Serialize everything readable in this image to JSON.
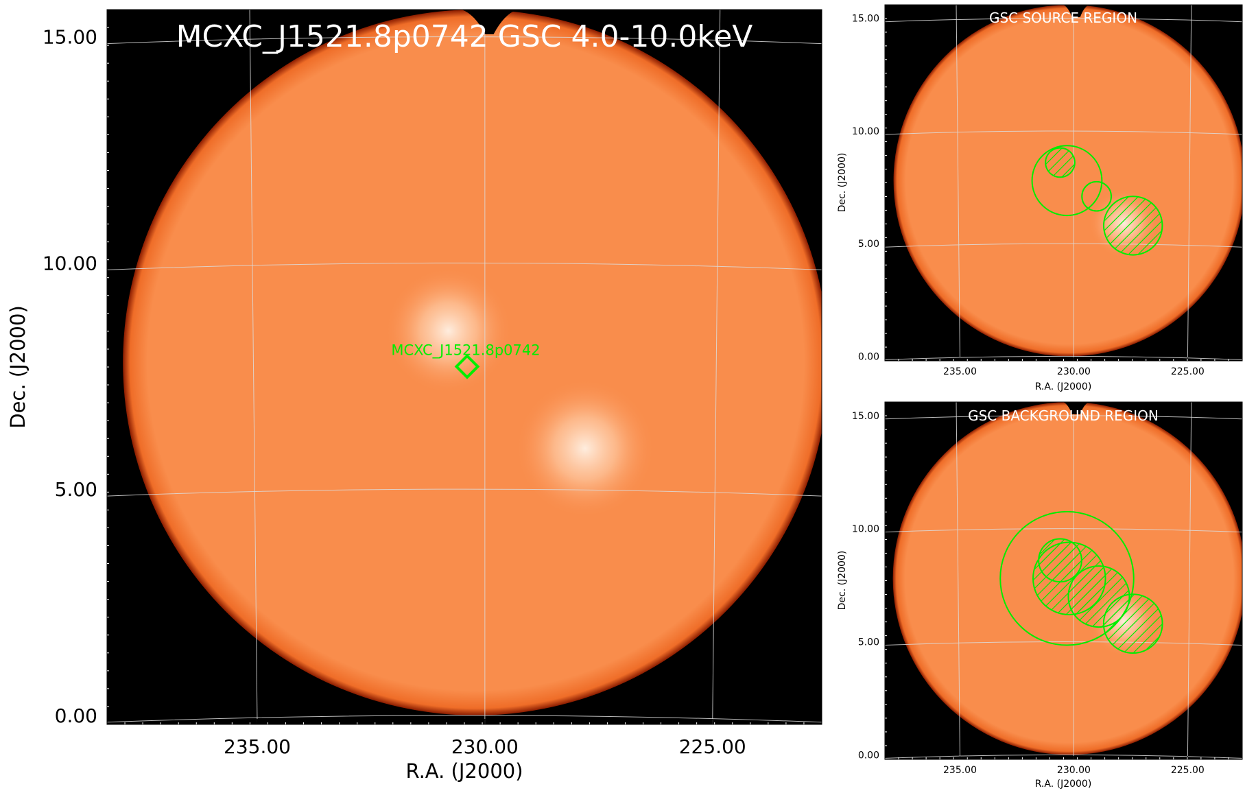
{
  "colors": {
    "disk": "#f98d4c",
    "disk_edge": "#e9651f",
    "background": "#000000",
    "grid": "#dcdcdc",
    "region": "#00ee00",
    "title_text": "#ffffff",
    "bright_spot": "#fff2e6"
  },
  "chart_data": [
    {
      "id": "main",
      "type": "heatmap",
      "title": "MCXC_J1521.8p0742 GSC 4.0-10.0keV",
      "xlabel": "R.A. (J2000)",
      "ylabel": "Dec. (J2000)",
      "xlim": [
        238.3,
        222.6
      ],
      "ylim": [
        -0.2,
        15.6
      ],
      "x_ticks": [
        235.0,
        230.0,
        225.0
      ],
      "x_tick_labels": [
        "235.00",
        "230.00",
        "225.00"
      ],
      "y_ticks": [
        0.0,
        5.0,
        10.0,
        15.0
      ],
      "y_tick_labels": [
        "0.00",
        "5.00",
        "10.00",
        "15.00"
      ],
      "grid": true,
      "field_of_view": {
        "ra": 230.2,
        "dec": 7.8,
        "radius_deg": 7.8
      },
      "bright_spots": [
        {
          "ra": 227.8,
          "dec": 5.9,
          "radius_deg": 1.1
        },
        {
          "ra": 230.8,
          "dec": 8.5,
          "radius_deg": 1.0
        }
      ],
      "marker": {
        "label": "MCXC_J1521.8p0742",
        "ra": 230.39,
        "dec": 7.71,
        "shape": "diamond"
      }
    },
    {
      "id": "source",
      "type": "heatmap",
      "title": "GSC SOURCE REGION",
      "xlabel": "R.A. (J2000)",
      "ylabel": "Dec. (J2000)",
      "xlim": [
        238.3,
        222.6
      ],
      "ylim": [
        -0.2,
        15.6
      ],
      "x_ticks": [
        235.0,
        230.0,
        225.0
      ],
      "x_tick_labels": [
        "235.00",
        "230.00",
        "225.00"
      ],
      "y_ticks": [
        0.0,
        5.0,
        10.0,
        15.0
      ],
      "y_tick_labels": [
        "0.00",
        "5.00",
        "10.00",
        "15.00"
      ],
      "grid": true,
      "field_of_view": {
        "ra": 230.2,
        "dec": 7.8,
        "radius_deg": 7.8
      },
      "bright_spots": [
        {
          "ra": 227.8,
          "dec": 5.9,
          "radius_deg": 1.1
        }
      ],
      "regions": [
        {
          "ra": 230.3,
          "dec": 7.8,
          "radius_deg": 1.55,
          "hatched": false
        },
        {
          "ra": 230.6,
          "dec": 8.6,
          "radius_deg": 0.65,
          "hatched": true
        },
        {
          "ra": 229.0,
          "dec": 7.1,
          "radius_deg": 0.65,
          "hatched": false
        },
        {
          "ra": 227.4,
          "dec": 5.8,
          "radius_deg": 1.3,
          "hatched": true
        }
      ]
    },
    {
      "id": "background",
      "type": "heatmap",
      "title": "GSC BACKGROUND REGION",
      "xlabel": "R.A. (J2000)",
      "ylabel": "Dec. (J2000)",
      "xlim": [
        238.3,
        222.6
      ],
      "ylim": [
        -0.2,
        15.6
      ],
      "x_ticks": [
        235.0,
        230.0,
        225.0
      ],
      "x_tick_labels": [
        "235.00",
        "230.00",
        "225.00"
      ],
      "y_ticks": [
        0.0,
        5.0,
        10.0,
        15.0
      ],
      "y_tick_labels": [
        "0.00",
        "5.00",
        "10.00",
        "15.00"
      ],
      "grid": true,
      "field_of_view": {
        "ra": 230.2,
        "dec": 7.8,
        "radius_deg": 7.8
      },
      "bright_spots": [
        {
          "ra": 227.8,
          "dec": 5.9,
          "radius_deg": 1.1
        }
      ],
      "regions": [
        {
          "ra": 230.3,
          "dec": 7.8,
          "radius_deg": 2.95,
          "hatched": false
        },
        {
          "ra": 230.6,
          "dec": 8.6,
          "radius_deg": 0.95,
          "hatched": true
        },
        {
          "ra": 230.2,
          "dec": 7.8,
          "radius_deg": 1.6,
          "hatched": true
        },
        {
          "ra": 228.9,
          "dec": 7.0,
          "radius_deg": 1.35,
          "hatched": true
        },
        {
          "ra": 227.4,
          "dec": 5.8,
          "radius_deg": 1.3,
          "hatched": true
        }
      ]
    }
  ]
}
